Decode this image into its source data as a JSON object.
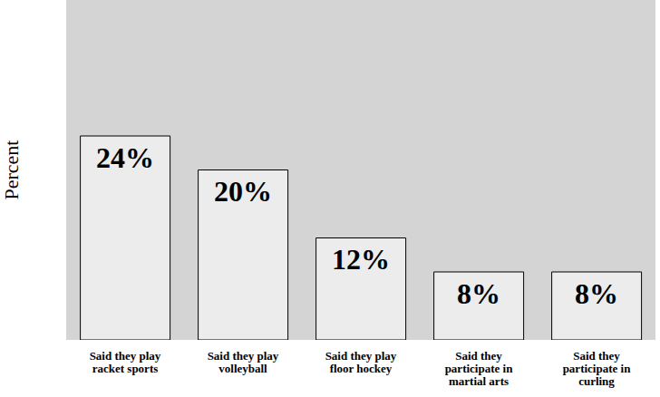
{
  "chart_data": {
    "type": "bar",
    "ylabel": "Percent",
    "categories": [
      "Said they play racket sports",
      "Said they play volleyball",
      "Said they play floor hockey",
      "Said they participate in martial arts",
      "Said they participate in curling"
    ],
    "values": [
      24,
      20,
      12,
      8,
      8
    ],
    "value_labels": [
      "24%",
      "20%",
      "12%",
      "8%",
      "8%"
    ],
    "data_labels": true,
    "tick_labels": "x",
    "ylim": [
      0,
      40
    ],
    "grid": false,
    "color": "#ffffff"
  }
}
